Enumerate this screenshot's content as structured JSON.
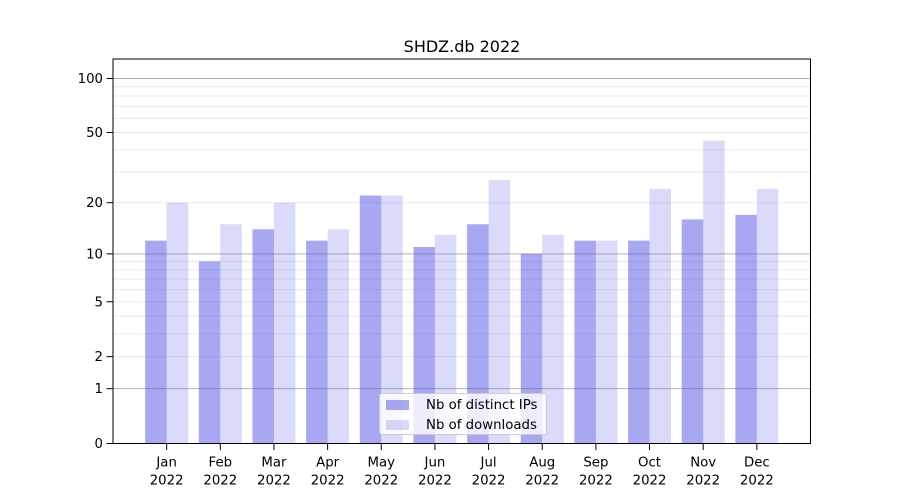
{
  "chart_data": {
    "type": "bar",
    "title": "SHDZ.db 2022",
    "categories": [
      "Jan",
      "Feb",
      "Mar",
      "Apr",
      "May",
      "Jun",
      "Jul",
      "Aug",
      "Sep",
      "Oct",
      "Nov",
      "Dec"
    ],
    "category_year": "2022",
    "series": [
      {
        "name": "Nb of distinct IPs",
        "color": "rgba(80,80,230,0.5)",
        "values": [
          12,
          9,
          14,
          12,
          22,
          11,
          15,
          10,
          12,
          12,
          16,
          17
        ]
      },
      {
        "name": "Nb of downloads",
        "color": "rgba(80,80,230,0.21)",
        "values": [
          20,
          15,
          20,
          14,
          22,
          13,
          27,
          13,
          12,
          24,
          45,
          24
        ]
      }
    ],
    "yscale": "log1p",
    "ylim": [
      0,
      128
    ],
    "ytick_values": [
      100,
      50,
      20,
      10,
      5,
      2,
      1,
      0
    ],
    "ytick_labels": [
      "100",
      "50",
      "20",
      "10",
      "5",
      "2",
      "1",
      "0"
    ],
    "grid": {
      "minor_values": [
        2,
        3,
        4,
        5,
        6,
        7,
        8,
        9,
        20,
        30,
        40,
        50,
        60,
        70,
        80,
        90
      ],
      "major_values": [
        1,
        10,
        100
      ],
      "minor_color": "#eaeaea",
      "major_color": "#b5b5b5"
    },
    "axis_color": "#000000",
    "legend_position": "bottom-center"
  }
}
